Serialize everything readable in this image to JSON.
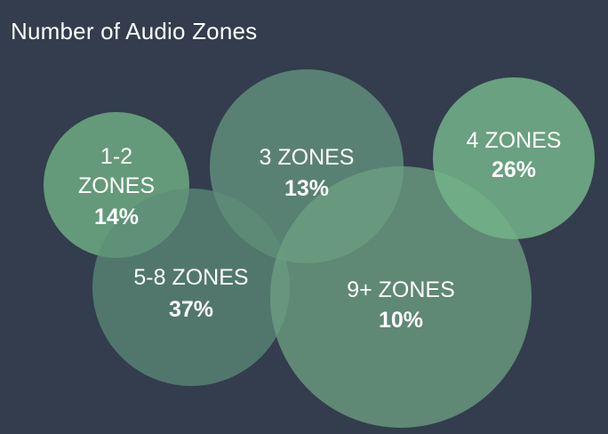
{
  "chart_data": {
    "type": "bubble",
    "title": "Number of Audio Zones",
    "bubbles": [
      {
        "label_lines": [
          "1-2",
          "ZONES"
        ],
        "value": "14%",
        "percent": 14,
        "color": "#6fae82"
      },
      {
        "label_lines": [
          "3 ZONES"
        ],
        "value": "13%",
        "percent": 13,
        "color": "#64957e"
      },
      {
        "label_lines": [
          "4 ZONES"
        ],
        "value": "26%",
        "percent": 26,
        "color": "#73b288"
      },
      {
        "label_lines": [
          "5-8 ZONES"
        ],
        "value": "37%",
        "percent": 37,
        "color": "#5d8e78"
      },
      {
        "label_lines": [
          "9+ ZONES"
        ],
        "value": "10%",
        "percent": 10,
        "color": "#6da182"
      }
    ],
    "colors": {
      "background": "#333d4d",
      "text": "#ffffff"
    }
  }
}
